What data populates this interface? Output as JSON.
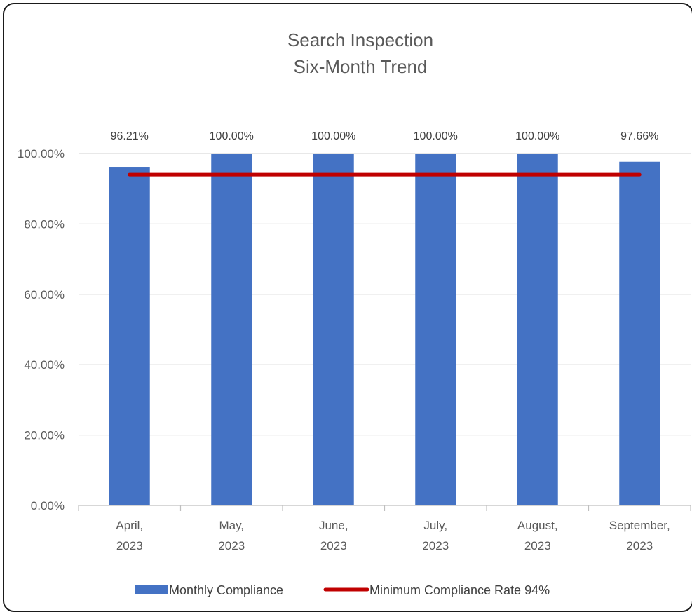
{
  "chart_data": {
    "type": "bar",
    "title": [
      "Search Inspection",
      "Six-Month Trend"
    ],
    "categories": [
      [
        "April,",
        "2023"
      ],
      [
        "May,",
        "2023"
      ],
      [
        "June,",
        "2023"
      ],
      [
        "July,",
        "2023"
      ],
      [
        "August,",
        "2023"
      ],
      [
        "September,",
        "2023"
      ]
    ],
    "series": [
      {
        "name": "Monthly Compliance",
        "type": "bar",
        "color": "#4472c4",
        "values": [
          96.21,
          100.0,
          100.0,
          100.0,
          100.0,
          97.66
        ],
        "labels": [
          "96.21%",
          "100.00%",
          "100.00%",
          "100.00%",
          "100.00%",
          "97.66%"
        ]
      },
      {
        "name": "Minimum Compliance Rate 94%",
        "type": "line",
        "color": "#c00000",
        "values": [
          94,
          94,
          94,
          94,
          94,
          94
        ]
      }
    ],
    "ylim": [
      0,
      100
    ],
    "yticks": [
      "0.00%",
      "20.00%",
      "40.00%",
      "60.00%",
      "80.00%",
      "100.00%"
    ],
    "grid": true,
    "legend": "bottom"
  }
}
